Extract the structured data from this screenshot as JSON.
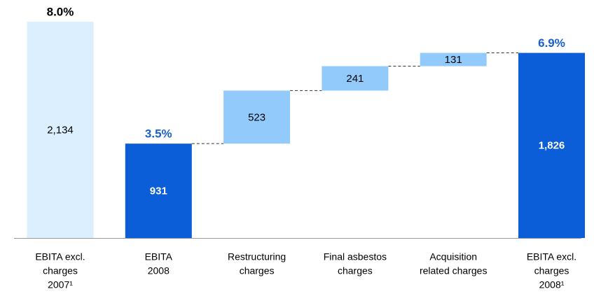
{
  "chart_data": {
    "type": "waterfall",
    "categories": [
      [
        "EBITA excl.",
        "charges",
        "2007¹"
      ],
      [
        "EBITA",
        "2008"
      ],
      [
        "Restructuring",
        "charges"
      ],
      [
        "Final asbestos",
        "charges"
      ],
      [
        "Acquisition",
        "related charges"
      ],
      [
        "EBITA excl.",
        "charges",
        "2008¹"
      ]
    ],
    "values": [
      2134,
      931,
      523,
      241,
      131,
      1826
    ],
    "value_labels": [
      "2,134",
      "931",
      "523",
      "241",
      "131",
      "1,826"
    ],
    "measures": [
      "total",
      "total",
      "relative",
      "relative",
      "relative",
      "total"
    ],
    "colors": [
      "#dcefff",
      "#0b5ed7",
      "#92cbfb",
      "#92cbfb",
      "#92cbfb",
      "#0b5ed7"
    ],
    "label_colors": [
      "#000000",
      "#ffffff",
      "#000000",
      "#000000",
      "#000000",
      "#ffffff"
    ],
    "label_bold": [
      false,
      true,
      false,
      false,
      false,
      true
    ],
    "margin_labels": [
      "8.0%",
      "3.5%",
      null,
      null,
      null,
      "6.9%"
    ],
    "margin_colors": [
      "#000000",
      "#1a5fd0",
      null,
      null,
      null,
      "#1a5fd0"
    ],
    "ylim": [
      0,
      2200
    ]
  }
}
